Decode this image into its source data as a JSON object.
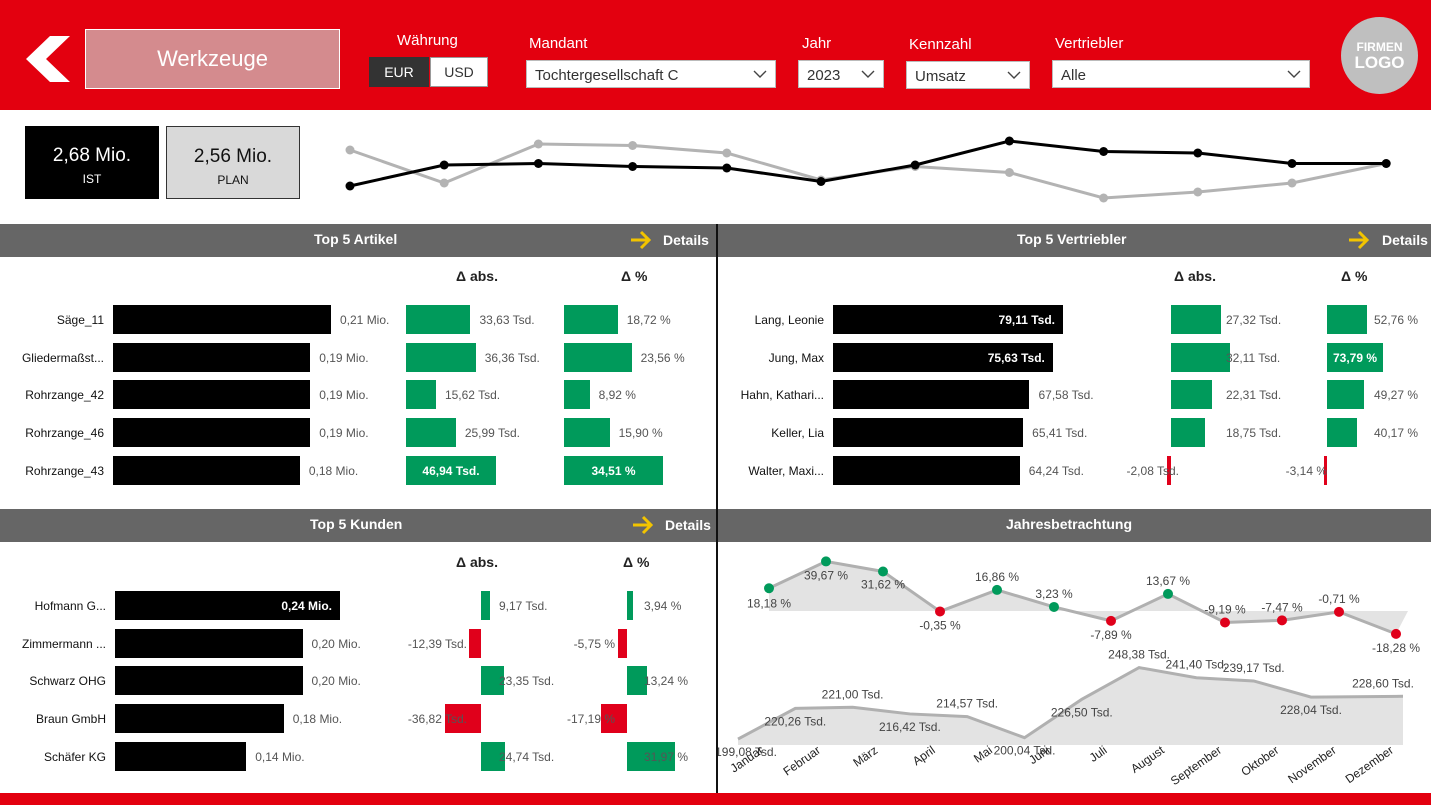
{
  "header": {
    "title": "Werkzeuge",
    "currency_label": "Währung",
    "currency_options": [
      "EUR",
      "USD"
    ],
    "currency_selected": "EUR",
    "mandant_label": "Mandant",
    "mandant_value": "Tochtergesellschaft C",
    "jahr_label": "Jahr",
    "jahr_value": "2023",
    "kennzahl_label": "Kennzahl",
    "kennzahl_value": "Umsatz",
    "vertriebler_label": "Vertriebler",
    "vertriebler_value": "Alle",
    "logo_line1": "FIRMEN",
    "logo_line2": "LOGO"
  },
  "kpis": {
    "ist_value": "2,68 Mio.",
    "ist_label": "IST",
    "plan_value": "2,56 Mio.",
    "plan_label": "PLAN"
  },
  "trend": {
    "ist": [
      14,
      28,
      29,
      27,
      26,
      17,
      28,
      44,
      37,
      36,
      29,
      29
    ],
    "plan": [
      38,
      16,
      42,
      41,
      36,
      18,
      27,
      23,
      6,
      10,
      16,
      29
    ],
    "colors": {
      "ist": "#000000",
      "plan": "#b3b3b3"
    }
  },
  "colors": {
    "green": "#009a5b",
    "red": "#e0001b",
    "black": "#000000",
    "header": "#e3000f"
  },
  "details_label": "Details",
  "delta_abs_label": "Δ abs.",
  "delta_pct_label": "Δ %",
  "artikel": {
    "title": "Top 5 Artikel",
    "rows": [
      {
        "name": "Säge_11",
        "value": 0.21,
        "value_label": "0,21 Mio.",
        "abs": 33.63,
        "abs_label": "33,63 Tsd.",
        "pct": 18.72,
        "pct_label": "18,72 %"
      },
      {
        "name": "Gliedermaßst...",
        "value": 0.19,
        "value_label": "0,19 Mio.",
        "abs": 36.36,
        "abs_label": "36,36 Tsd.",
        "pct": 23.56,
        "pct_label": "23,56 %"
      },
      {
        "name": "Rohrzange_42",
        "value": 0.19,
        "value_label": "0,19 Mio.",
        "abs": 15.62,
        "abs_label": "15,62 Tsd.",
        "pct": 8.92,
        "pct_label": "8,92 %"
      },
      {
        "name": "Rohrzange_46",
        "value": 0.19,
        "value_label": "0,19 Mio.",
        "abs": 25.99,
        "abs_label": "25,99 Tsd.",
        "pct": 15.9,
        "pct_label": "15,90 %"
      },
      {
        "name": "Rohrzange_43",
        "value": 0.18,
        "value_label": "0,18 Mio.",
        "abs": 46.94,
        "abs_label": "46,94 Tsd.",
        "pct": 34.51,
        "pct_label": "34,51 %"
      }
    ]
  },
  "vertriebler": {
    "title": "Top 5 Vertriebler",
    "rows": [
      {
        "name": "Lang, Leonie",
        "value": 79.11,
        "value_label": "79,11 Tsd.",
        "abs": 27.32,
        "abs_label": "27,32 Tsd.",
        "pct": 52.76,
        "pct_label": "52,76 %"
      },
      {
        "name": "Jung, Max",
        "value": 75.63,
        "value_label": "75,63 Tsd.",
        "abs": 32.11,
        "abs_label": "32,11 Tsd.",
        "pct": 73.79,
        "pct_label": "73,79 %"
      },
      {
        "name": "Hahn, Kathari...",
        "value": 67.58,
        "value_label": "67,58 Tsd.",
        "abs": 22.31,
        "abs_label": "22,31 Tsd.",
        "pct": 49.27,
        "pct_label": "49,27 %"
      },
      {
        "name": "Keller, Lia",
        "value": 65.41,
        "value_label": "65,41 Tsd.",
        "abs": 18.75,
        "abs_label": "18,75 Tsd.",
        "pct": 40.17,
        "pct_label": "40,17 %"
      },
      {
        "name": "Walter, Maxi...",
        "value": 64.24,
        "value_label": "64,24 Tsd.",
        "abs": -2.08,
        "abs_label": "-2,08 Tsd.",
        "pct": -3.14,
        "pct_label": "-3,14 %"
      }
    ]
  },
  "kunden": {
    "title": "Top 5 Kunden",
    "rows": [
      {
        "name": "Hofmann  G...",
        "value": 0.24,
        "value_label": "0,24 Mio.",
        "abs": 9.17,
        "abs_label": "9,17 Tsd.",
        "pct": 3.94,
        "pct_label": "3,94 %"
      },
      {
        "name": "Zimmermann ...",
        "value": 0.2,
        "value_label": "0,20 Mio.",
        "abs": -12.39,
        "abs_label": "-12,39 Tsd.",
        "pct": -5.75,
        "pct_label": "-5,75 %"
      },
      {
        "name": "Schwarz  OHG",
        "value": 0.2,
        "value_label": "0,20 Mio.",
        "abs": 23.35,
        "abs_label": "23,35 Tsd.",
        "pct": 13.24,
        "pct_label": "13,24 %"
      },
      {
        "name": "Braun  GmbH",
        "value": 0.18,
        "value_label": "0,18 Mio.",
        "abs": -36.82,
        "abs_label": "-36,82 Tsd.",
        "pct": -17.19,
        "pct_label": "-17,19 %"
      },
      {
        "name": "Schäfer  KG",
        "value": 0.14,
        "value_label": "0,14 Mio.",
        "abs": 24.74,
        "abs_label": "24,74 Tsd.",
        "pct": 31.97,
        "pct_label": "31,97 %"
      }
    ]
  },
  "jahresbetrachtung": {
    "title": "Jahresbetrachtung",
    "months": [
      "Januar",
      "Februar",
      "März",
      "April",
      "Mai",
      "Juni",
      "Juli",
      "August",
      "September",
      "Oktober",
      "November",
      "Dezember"
    ],
    "pct": [
      18.18,
      39.67,
      31.62,
      -0.35,
      16.86,
      3.23,
      -7.89,
      13.67,
      -9.19,
      -7.47,
      -0.71,
      -18.28
    ],
    "pct_labels": [
      "18,18 %",
      "39,67 %",
      "31,62 %",
      "-0,35 %",
      "16,86 %",
      "3,23 %",
      "-7,89 %",
      "13,67 %",
      "-9,19 %",
      "-7,47 %",
      "-0,71 %",
      "-18,28 %"
    ],
    "values": [
      199.08,
      220.26,
      221.0,
      216.42,
      214.57,
      200.04,
      226.5,
      248.38,
      241.4,
      239.17,
      228.04,
      228.6
    ],
    "value_labels": [
      "199,08 Tsd.",
      "220,26 Tsd.",
      "221,00 Tsd.",
      "216,42 Tsd.",
      "214,57 Tsd.",
      "200,04 Tsd.",
      "226,50 Tsd.",
      "248,38 Tsd.",
      "241,40 Tsd.",
      "239,17 Tsd.",
      "228,04 Tsd.",
      "228,60 Tsd."
    ]
  }
}
